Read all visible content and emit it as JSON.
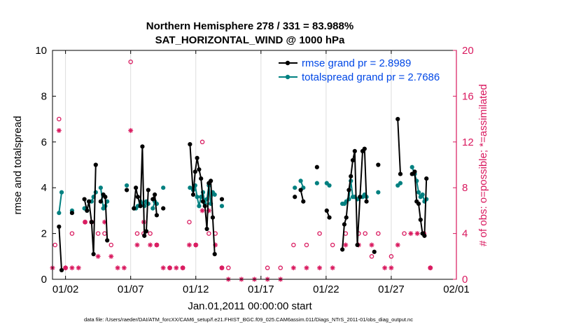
{
  "chart_data": {
    "type": "line",
    "title_line1": "Northern Hemisphere 278 / 331 = 83.988%",
    "title_line2": "SAT_HORIZONTAL_WIND @ 1000 hPa",
    "xlabel": "Jan.01,2011 00:00:00 start",
    "ylabel_left": "rmse and totalspread",
    "ylabel_right": "# of obs: o=possible; *=assimilated",
    "footer": "data file: /Users/raeder/DAI/ATM_forcXX/CAM6_setup/f.e21.FHIST_BGC.f09_025.CAM6assim.011/Diags_NTrS_2011-01/obs_diag_output.nc",
    "xlim": [
      0.5,
      31.5
    ],
    "ylim_left": [
      0,
      10
    ],
    "ylim_right": [
      0,
      20
    ],
    "x_ticks": [
      1.5,
      6.5,
      11.5,
      16.5,
      21.5,
      26.5,
      31.5
    ],
    "x_tick_labels": [
      "01/02",
      "01/07",
      "01/12",
      "01/17",
      "01/22",
      "01/27",
      "02/01"
    ],
    "y_ticks_left": [
      0,
      2,
      4,
      6,
      8,
      10
    ],
    "y_tick_labels_left": [
      "0",
      "2",
      "4",
      "6",
      "8",
      "10"
    ],
    "y_ticks_right": [
      0,
      4,
      8,
      12,
      16,
      20
    ],
    "y_tick_labels_right": [
      "0",
      "4",
      "8",
      "12",
      "16",
      "20"
    ],
    "colors": {
      "rmse": "#000000",
      "spread": "#008080",
      "obs": "#d9185e",
      "axis_right": "#d9185e",
      "legend_text": "#0047e6",
      "grid": "#dddddd"
    },
    "series": [
      {
        "name": "rmse grand pr = 2.8989",
        "color": "#000000",
        "points": [
          [
            1.0,
            2.3
          ],
          [
            1.2,
            0.4
          ],
          [
            1.5,
            null
          ],
          [
            2.0,
            2.9
          ],
          [
            2.5,
            null
          ],
          [
            2.95,
            3.5
          ],
          [
            3.15,
            3.0
          ],
          [
            3.3,
            3.4
          ],
          [
            3.5,
            2.5
          ],
          [
            3.65,
            1.1
          ],
          [
            3.82,
            5.0
          ],
          [
            3.9,
            null
          ],
          [
            4.2,
            3.4
          ],
          [
            4.4,
            3.7
          ],
          [
            4.55,
            3.6
          ],
          [
            4.7,
            1.7
          ],
          [
            4.8,
            null
          ],
          [
            6.2,
            3.9
          ],
          [
            6.5,
            null
          ],
          [
            6.75,
            3.1
          ],
          [
            6.9,
            4.0
          ],
          [
            7.05,
            3.6
          ],
          [
            7.25,
            3.2
          ],
          [
            7.4,
            5.8
          ],
          [
            7.55,
            1.9
          ],
          [
            7.7,
            2.1
          ],
          [
            7.85,
            3.9
          ],
          [
            7.95,
            null
          ],
          [
            8.2,
            3.5
          ],
          [
            8.35,
            3.7
          ],
          [
            8.5,
            2.8
          ],
          [
            8.6,
            null
          ],
          [
            9.0,
            3.1
          ],
          [
            9.1,
            null
          ],
          [
            11.05,
            5.9
          ],
          [
            11.3,
            3.7
          ],
          [
            11.45,
            4.7
          ],
          [
            11.6,
            5.3
          ],
          [
            11.75,
            4.8
          ],
          [
            11.9,
            4.4
          ],
          [
            12.05,
            3.4
          ],
          [
            12.2,
            3.2
          ],
          [
            12.35,
            2.2
          ],
          [
            12.5,
            4.2
          ],
          [
            12.65,
            4.3
          ],
          [
            12.8,
            2.7
          ],
          [
            12.95,
            1.1
          ],
          [
            13.05,
            null
          ],
          [
            13.5,
            3.5
          ],
          [
            13.6,
            null
          ],
          [
            19.1,
            3.6
          ],
          [
            19.2,
            null
          ],
          [
            19.55,
            3.9
          ],
          [
            19.75,
            3.4
          ],
          [
            19.85,
            null
          ],
          [
            20.8,
            4.9
          ],
          [
            20.9,
            null
          ],
          [
            21.55,
            3.0
          ],
          [
            21.75,
            2.7
          ],
          [
            21.85,
            null
          ],
          [
            22.75,
            1.3
          ],
          [
            22.9,
            2.4
          ],
          [
            23.05,
            2.7
          ],
          [
            23.25,
            3.9
          ],
          [
            23.4,
            4.5
          ],
          [
            23.55,
            5.2
          ],
          [
            23.7,
            5.6
          ],
          [
            23.9,
            1.5
          ],
          [
            24.1,
            3.6
          ],
          [
            24.3,
            5.6
          ],
          [
            24.45,
            5.7
          ],
          [
            24.6,
            3.4
          ],
          [
            24.75,
            null
          ],
          [
            25.2,
            1.2
          ],
          [
            25.3,
            null
          ],
          [
            25.5,
            5.0
          ],
          [
            25.6,
            null
          ],
          [
            27.0,
            7.0
          ],
          [
            27.2,
            4.6
          ],
          [
            27.3,
            null
          ],
          [
            28.1,
            4.6
          ],
          [
            28.3,
            4.7
          ],
          [
            28.45,
            3.4
          ],
          [
            28.6,
            3.3
          ],
          [
            28.75,
            2.6
          ],
          [
            28.9,
            2.0
          ],
          [
            29.05,
            1.9
          ],
          [
            29.2,
            4.4
          ],
          [
            29.3,
            null
          ]
        ]
      },
      {
        "name": "totalspread grand pr = 2.7686",
        "color": "#008080",
        "points": [
          [
            1.0,
            2.9
          ],
          [
            1.2,
            3.8
          ],
          [
            1.5,
            null
          ],
          [
            2.0,
            3.0
          ],
          [
            2.5,
            null
          ],
          [
            2.95,
            3.1
          ],
          [
            3.15,
            3.0
          ],
          [
            3.3,
            3.4
          ],
          [
            3.5,
            3.4
          ],
          [
            3.65,
            3.6
          ],
          [
            3.82,
            3.8
          ],
          [
            3.9,
            null
          ],
          [
            4.2,
            4.0
          ],
          [
            4.4,
            3.1
          ],
          [
            4.55,
            3.2
          ],
          [
            4.7,
            3.4
          ],
          [
            4.8,
            null
          ],
          [
            6.2,
            4.1
          ],
          [
            6.5,
            null
          ],
          [
            6.75,
            3.1
          ],
          [
            6.9,
            3.1
          ],
          [
            7.05,
            3.2
          ],
          [
            7.25,
            3.4
          ],
          [
            7.4,
            3.3
          ],
          [
            7.55,
            3.2
          ],
          [
            7.7,
            3.4
          ],
          [
            7.85,
            3.3
          ],
          [
            7.95,
            null
          ],
          [
            8.2,
            3.1
          ],
          [
            8.35,
            3.4
          ],
          [
            8.5,
            3.3
          ],
          [
            8.6,
            null
          ],
          [
            9.0,
            4.0
          ],
          [
            9.1,
            null
          ],
          [
            11.05,
            4.0
          ],
          [
            11.3,
            3.9
          ],
          [
            11.45,
            4.1
          ],
          [
            11.6,
            3.6
          ],
          [
            11.75,
            3.2
          ],
          [
            11.9,
            3.6
          ],
          [
            12.05,
            3.8
          ],
          [
            12.2,
            3.3
          ],
          [
            12.35,
            3.5
          ],
          [
            12.5,
            4.1
          ],
          [
            12.65,
            3.3
          ],
          [
            12.8,
            3.8
          ],
          [
            12.95,
            3.7
          ],
          [
            13.05,
            null
          ],
          [
            13.5,
            3.2
          ],
          [
            13.6,
            null
          ],
          [
            19.1,
            4.0
          ],
          [
            19.2,
            null
          ],
          [
            19.55,
            4.3
          ],
          [
            19.75,
            4.0
          ],
          [
            19.85,
            null
          ],
          [
            20.8,
            4.2
          ],
          [
            20.9,
            null
          ],
          [
            21.55,
            4.2
          ],
          [
            21.75,
            4.1
          ],
          [
            21.85,
            null
          ],
          [
            22.75,
            3.3
          ],
          [
            22.9,
            3.3
          ],
          [
            23.05,
            3.4
          ],
          [
            23.25,
            3.5
          ],
          [
            23.4,
            4.3
          ],
          [
            23.55,
            3.6
          ],
          [
            23.7,
            3.6
          ],
          [
            23.9,
            3.5
          ],
          [
            24.1,
            3.6
          ],
          [
            24.3,
            3.6
          ],
          [
            24.45,
            3.7
          ],
          [
            24.6,
            3.6
          ],
          [
            24.75,
            null
          ],
          [
            25.5,
            3.8
          ],
          [
            25.6,
            null
          ],
          [
            27.0,
            4.1
          ],
          [
            27.2,
            4.2
          ],
          [
            27.3,
            null
          ],
          [
            28.1,
            4.9
          ],
          [
            28.3,
            4.6
          ],
          [
            28.45,
            4.3
          ],
          [
            28.6,
            3.8
          ],
          [
            28.75,
            3.6
          ],
          [
            28.9,
            3.7
          ],
          [
            29.05,
            3.4
          ],
          [
            29.2,
            3.5
          ],
          [
            29.3,
            null
          ]
        ]
      }
    ],
    "obs_possible_right_axis": [
      [
        0.7,
        3
      ],
      [
        1.0,
        14
      ],
      [
        1.5,
        1
      ],
      [
        2.0,
        4
      ],
      [
        3.0,
        5
      ],
      [
        3.5,
        5
      ],
      [
        4.0,
        4
      ],
      [
        4.5,
        4
      ],
      [
        5.0,
        3
      ],
      [
        6.5,
        19
      ],
      [
        7.0,
        4
      ],
      [
        7.5,
        4
      ],
      [
        8.0,
        4
      ],
      [
        8.5,
        3
      ],
      [
        9.5,
        1
      ],
      [
        10.5,
        1
      ],
      [
        11.0,
        5
      ],
      [
        11.5,
        3
      ],
      [
        12.0,
        12
      ],
      [
        12.5,
        4
      ],
      [
        13.0,
        4
      ],
      [
        13.5,
        1
      ],
      [
        14.0,
        1
      ],
      [
        17.0,
        1
      ],
      [
        18.0,
        1
      ],
      [
        19.0,
        3
      ],
      [
        20.0,
        3
      ],
      [
        21.0,
        4
      ],
      [
        22.0,
        3
      ],
      [
        23.0,
        4
      ],
      [
        24.0,
        4
      ],
      [
        24.5,
        4
      ],
      [
        25.0,
        2
      ],
      [
        25.5,
        4
      ],
      [
        26.5,
        2
      ],
      [
        27.5,
        4
      ],
      [
        29.0,
        4
      ],
      [
        29.5,
        1
      ]
    ],
    "obs_assimilated_right_axis": [
      [
        0.5,
        1
      ],
      [
        1.0,
        13
      ],
      [
        1.5,
        1
      ],
      [
        2.0,
        1
      ],
      [
        2.5,
        1
      ],
      [
        3.0,
        5
      ],
      [
        3.5,
        5
      ],
      [
        4.0,
        2
      ],
      [
        4.5,
        5
      ],
      [
        5.0,
        2
      ],
      [
        5.5,
        1
      ],
      [
        6.0,
        1
      ],
      [
        6.5,
        13
      ],
      [
        7.0,
        3
      ],
      [
        7.5,
        5
      ],
      [
        8.0,
        3
      ],
      [
        8.5,
        3
      ],
      [
        9.0,
        1
      ],
      [
        9.5,
        1
      ],
      [
        10.0,
        1
      ],
      [
        10.5,
        1
      ],
      [
        11.0,
        3
      ],
      [
        11.5,
        3
      ],
      [
        12.0,
        6
      ],
      [
        12.5,
        6
      ],
      [
        13.0,
        3
      ],
      [
        13.5,
        1
      ],
      [
        14.0,
        0
      ],
      [
        15.0,
        0
      ],
      [
        16.0,
        0
      ],
      [
        17.0,
        0
      ],
      [
        18.0,
        0
      ],
      [
        19.0,
        1
      ],
      [
        20.0,
        1
      ],
      [
        21.0,
        1
      ],
      [
        22.0,
        1
      ],
      [
        23.0,
        3
      ],
      [
        24.0,
        3
      ],
      [
        25.0,
        3
      ],
      [
        26.0,
        1
      ],
      [
        26.5,
        1
      ],
      [
        27.0,
        3
      ],
      [
        28.0,
        4
      ],
      [
        28.5,
        4
      ],
      [
        29.0,
        4
      ],
      [
        29.5,
        1
      ]
    ]
  }
}
